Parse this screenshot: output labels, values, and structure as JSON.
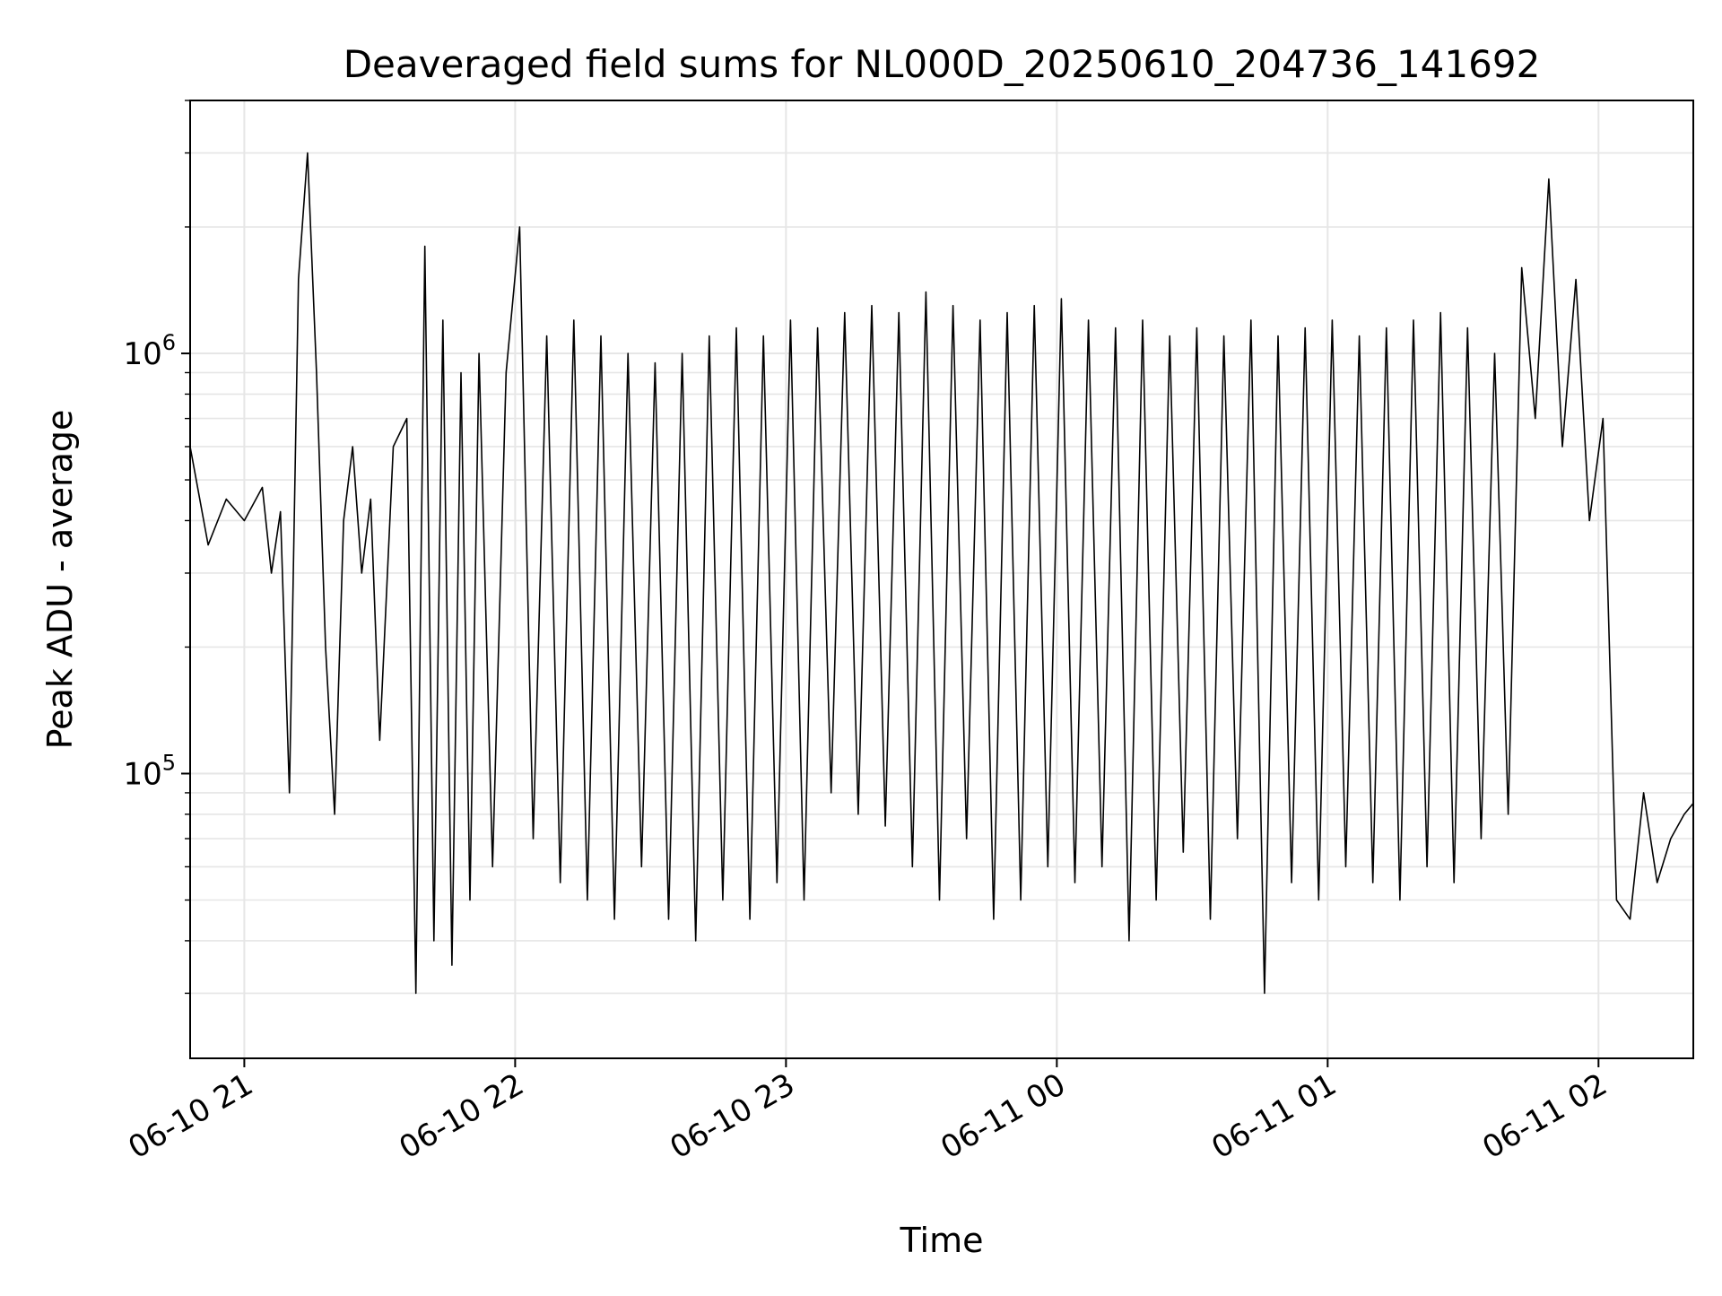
{
  "chart_data": {
    "type": "line",
    "title": "Deaveraged field sums for NL000D_20250610_204736_141692",
    "xlabel": "Time",
    "ylabel": "Peak ADU - average",
    "y_scale": "log",
    "ylim": [
      21000,
      4000000
    ],
    "xlim": [
      "2025-06-10 20:48",
      "2025-06-11 02:21"
    ],
    "x_ticks": [
      {
        "value": "2025-06-10 21:00",
        "label": "06-10 21"
      },
      {
        "value": "2025-06-10 22:00",
        "label": "06-10 22"
      },
      {
        "value": "2025-06-10 23:00",
        "label": "06-10 23"
      },
      {
        "value": "2025-06-11 00:00",
        "label": "06-11 00"
      },
      {
        "value": "2025-06-11 01:00",
        "label": "06-11 01"
      },
      {
        "value": "2025-06-11 02:00",
        "label": "06-11 02"
      }
    ],
    "y_ticks": [
      {
        "value": 100000,
        "base": "10",
        "exp": "5"
      },
      {
        "value": 1000000,
        "base": "10",
        "exp": "6"
      }
    ],
    "grid": true,
    "line_color": "#000000",
    "series": [
      {
        "x": [
          "2025-06-10 20:48",
          "2025-06-10 20:52",
          "2025-06-10 20:56",
          "2025-06-10 21:00",
          "2025-06-10 21:04",
          "2025-06-10 21:06",
          "2025-06-10 21:08",
          "2025-06-10 21:10",
          "2025-06-10 21:12",
          "2025-06-10 21:14",
          "2025-06-10 21:16",
          "2025-06-10 21:18",
          "2025-06-10 21:20",
          "2025-06-10 21:22",
          "2025-06-10 21:24",
          "2025-06-10 21:26",
          "2025-06-10 21:28",
          "2025-06-10 21:30",
          "2025-06-10 21:33",
          "2025-06-10 21:36",
          "2025-06-10 21:38",
          "2025-06-10 21:40",
          "2025-06-10 21:42",
          "2025-06-10 21:44",
          "2025-06-10 21:46",
          "2025-06-10 21:48",
          "2025-06-10 21:50",
          "2025-06-10 21:52",
          "2025-06-10 21:55",
          "2025-06-10 21:58",
          "2025-06-10 22:01",
          "2025-06-10 22:04",
          "2025-06-10 22:07",
          "2025-06-10 22:10",
          "2025-06-10 22:13",
          "2025-06-10 22:16",
          "2025-06-10 22:19",
          "2025-06-10 22:22",
          "2025-06-10 22:25",
          "2025-06-10 22:28",
          "2025-06-10 22:31",
          "2025-06-10 22:34",
          "2025-06-10 22:37",
          "2025-06-10 22:40",
          "2025-06-10 22:43",
          "2025-06-10 22:46",
          "2025-06-10 22:49",
          "2025-06-10 22:52",
          "2025-06-10 22:55",
          "2025-06-10 22:58",
          "2025-06-10 23:01",
          "2025-06-10 23:04",
          "2025-06-10 23:07",
          "2025-06-10 23:10",
          "2025-06-10 23:13",
          "2025-06-10 23:16",
          "2025-06-10 23:19",
          "2025-06-10 23:22",
          "2025-06-10 23:25",
          "2025-06-10 23:28",
          "2025-06-10 23:31",
          "2025-06-10 23:34",
          "2025-06-10 23:37",
          "2025-06-10 23:40",
          "2025-06-10 23:43",
          "2025-06-10 23:46",
          "2025-06-10 23:49",
          "2025-06-10 23:52",
          "2025-06-10 23:55",
          "2025-06-10 23:58",
          "2025-06-11 00:01",
          "2025-06-11 00:04",
          "2025-06-11 00:07",
          "2025-06-11 00:10",
          "2025-06-11 00:13",
          "2025-06-11 00:16",
          "2025-06-11 00:19",
          "2025-06-11 00:22",
          "2025-06-11 00:25",
          "2025-06-11 00:28",
          "2025-06-11 00:31",
          "2025-06-11 00:34",
          "2025-06-11 00:37",
          "2025-06-11 00:40",
          "2025-06-11 00:43",
          "2025-06-11 00:46",
          "2025-06-11 00:49",
          "2025-06-11 00:52",
          "2025-06-11 00:55",
          "2025-06-11 00:58",
          "2025-06-11 01:01",
          "2025-06-11 01:04",
          "2025-06-11 01:07",
          "2025-06-11 01:10",
          "2025-06-11 01:13",
          "2025-06-11 01:16",
          "2025-06-11 01:19",
          "2025-06-11 01:22",
          "2025-06-11 01:25",
          "2025-06-11 01:28",
          "2025-06-11 01:31",
          "2025-06-11 01:34",
          "2025-06-11 01:37",
          "2025-06-11 01:40",
          "2025-06-11 01:43",
          "2025-06-11 01:46",
          "2025-06-11 01:49",
          "2025-06-11 01:52",
          "2025-06-11 01:55",
          "2025-06-11 01:58",
          "2025-06-11 02:01",
          "2025-06-11 02:04",
          "2025-06-11 02:07",
          "2025-06-11 02:10",
          "2025-06-11 02:13",
          "2025-06-11 02:16",
          "2025-06-11 02:19",
          "2025-06-11 02:21"
        ],
        "y": [
          600000,
          350000,
          450000,
          400000,
          480000,
          300000,
          420000,
          90000,
          1500000,
          3000000,
          900000,
          200000,
          80000,
          400000,
          600000,
          300000,
          450000,
          120000,
          600000,
          700000,
          30000,
          1800000,
          40000,
          1200000,
          35000,
          900000,
          50000,
          1000000,
          60000,
          900000,
          2000000,
          70000,
          1100000,
          55000,
          1200000,
          50000,
          1100000,
          45000,
          1000000,
          60000,
          950000,
          45000,
          1000000,
          40000,
          1100000,
          50000,
          1150000,
          45000,
          1100000,
          55000,
          1200000,
          50000,
          1150000,
          90000,
          1250000,
          80000,
          1300000,
          75000,
          1250000,
          60000,
          1400000,
          50000,
          1300000,
          70000,
          1200000,
          45000,
          1250000,
          50000,
          1300000,
          60000,
          1350000,
          55000,
          1200000,
          60000,
          1150000,
          40000,
          1200000,
          50000,
          1100000,
          65000,
          1150000,
          45000,
          1100000,
          70000,
          1200000,
          30000,
          1100000,
          55000,
          1150000,
          50000,
          1200000,
          60000,
          1100000,
          55000,
          1150000,
          50000,
          1200000,
          60000,
          1250000,
          55000,
          1150000,
          70000,
          1000000,
          80000,
          1600000,
          700000,
          2600000,
          600000,
          1500000,
          400000,
          700000,
          50000,
          45000,
          90000,
          55000,
          70000,
          80000,
          85000
        ]
      }
    ]
  }
}
